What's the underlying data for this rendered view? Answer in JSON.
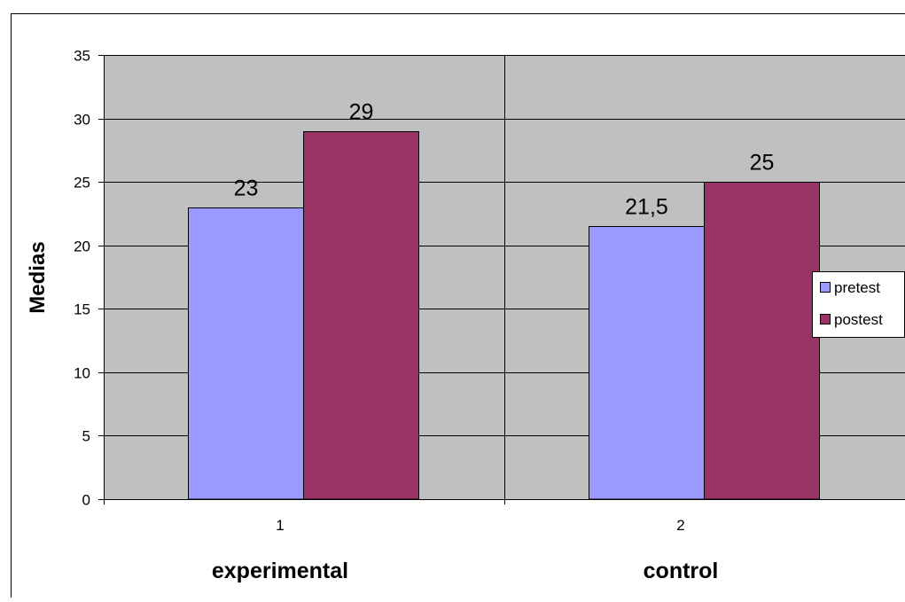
{
  "chart_data": {
    "type": "bar",
    "categories": [
      "1",
      "2"
    ],
    "group_labels": [
      "experimental",
      "control"
    ],
    "series": [
      {
        "name": "pretest",
        "values": [
          23,
          21.5
        ],
        "labels": [
          "23",
          "21,5"
        ],
        "color": "#9999ff"
      },
      {
        "name": "postest",
        "values": [
          29,
          25
        ],
        "labels": [
          "29",
          "25"
        ],
        "color": "#993366"
      }
    ],
    "ylabel": "Medias",
    "ylim": [
      0,
      35
    ],
    "yticks": [
      0,
      5,
      10,
      15,
      20,
      25,
      30,
      35
    ],
    "grid": true,
    "legend": "right",
    "plot_background": "#c0c0c0"
  }
}
